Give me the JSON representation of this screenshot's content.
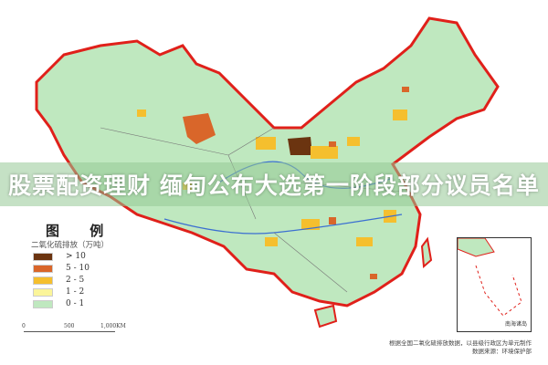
{
  "banner": {
    "text": "股票配资理财 缅甸公布大选第一阶段部分议员名单"
  },
  "legend": {
    "title": "图 例",
    "subtitle": "二氧化硫排放（万吨）",
    "items": [
      {
        "label": "> 10",
        "color": "#6b3410"
      },
      {
        "label": "5 - 10",
        "color": "#d9662a"
      },
      {
        "label": "2 - 5",
        "color": "#f5bf2e"
      },
      {
        "label": "1 - 2",
        "color": "#fbf59a"
      },
      {
        "label": "0 - 1",
        "color": "#bfe8bf"
      }
    ]
  },
  "scale": {
    "ticks": [
      "0",
      "500",
      "1,000KM"
    ]
  },
  "inset": {
    "label": "南海诸岛"
  },
  "footer": {
    "line1": "根据全国二氧化硫排放数据，以县级行政区为单元制作",
    "line2": "数据来源：环境保护部"
  },
  "colors": {
    "land": "#bfe8bf",
    "border": "#e0201a",
    "water": "#3b6fd1"
  }
}
